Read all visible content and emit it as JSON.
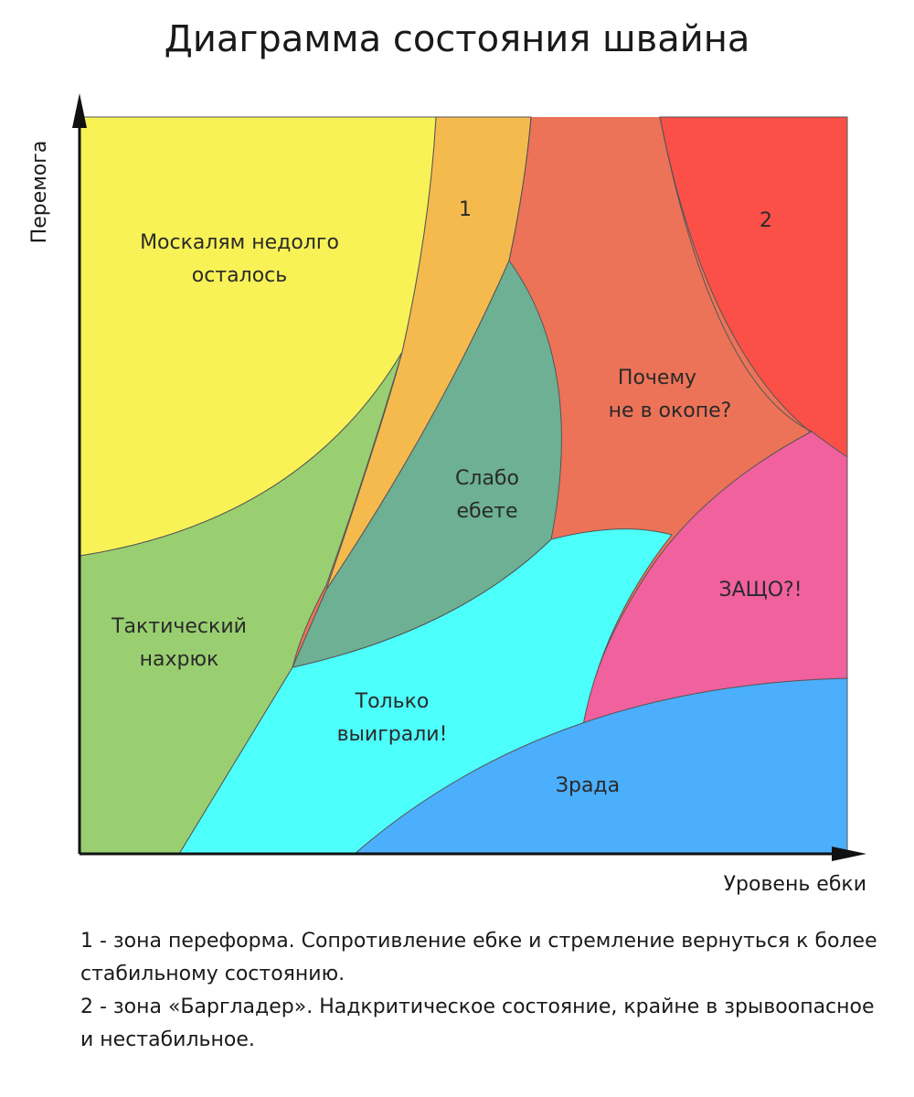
{
  "title": "Диаграмма состояния швайна",
  "axes": {
    "y_label": "Перемога",
    "x_label": "Уровень ебки"
  },
  "zones": {
    "yellow": {
      "label_lines": [
        "Москалям недолго",
        "осталось"
      ],
      "color": "#F8F256"
    },
    "zone1": {
      "label_lines": [
        "1"
      ],
      "color": "#F5BA4E"
    },
    "orange": {
      "label_lines": [
        "Почему",
        "не в окопе?"
      ],
      "color": "#EC7358"
    },
    "zone2": {
      "label_lines": [
        "2"
      ],
      "color": "#FB5047"
    },
    "teal": {
      "label_lines": [
        "Слабо",
        "ебете"
      ],
      "color": "#6DB093"
    },
    "green": {
      "label_lines": [
        "Тактический",
        "нахрюк"
      ],
      "color": "#99CF70"
    },
    "pink": {
      "label_lines": [
        "ЗАЩО?!"
      ],
      "color": "#F0619E"
    },
    "cyan": {
      "label_lines": [
        "Только",
        "выиграли!"
      ],
      "color": "#4DFFFB"
    },
    "blue": {
      "label_lines": [
        "Зрада"
      ],
      "color": "#4BAFFD"
    }
  },
  "notes": [
    "1 - зона переформа. Сопротивление ебке и стремление вернуться к более стабильному состоянию.",
    "2 - зона «Баргладер». Надкритическое состояние, крайне в зрывоопасное и нестабильное."
  ]
}
